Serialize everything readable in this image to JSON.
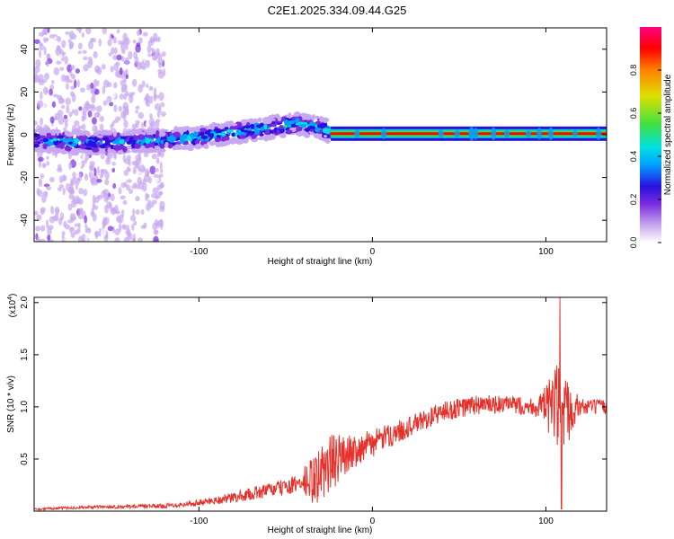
{
  "title": "C2E1.2025.334.09.44.G25",
  "chart_data": [
    {
      "type": "heatmap",
      "name": "spectrogram",
      "xlabel": "Height of straight line (km)",
      "ylabel": "Frequency (Hz)",
      "xlim": [
        -195,
        135
      ],
      "ylim": [
        -50,
        50
      ],
      "xticks": [
        -100,
        0,
        100
      ],
      "yticks": [
        -40,
        -20,
        0,
        20,
        40
      ],
      "colorbar": {
        "label": "Normalized spectral amplitude",
        "range": [
          0,
          1
        ],
        "ticks": [
          0.0,
          0.2,
          0.4,
          0.6,
          0.8
        ],
        "colors": [
          "#ffffff",
          "#c8a8f0",
          "#7a2be0",
          "#2a10e0",
          "#00a0ff",
          "#00e0e0",
          "#40e040",
          "#e0e000",
          "#ff8000",
          "#ff0000",
          "#ff0080"
        ]
      },
      "ridge": [
        {
          "x": -195,
          "freq": -2.5
        },
        {
          "x": -160,
          "freq": -4
        },
        {
          "x": -130,
          "freq": -3
        },
        {
          "x": -100,
          "freq": -1
        },
        {
          "x": -80,
          "freq": 1
        },
        {
          "x": -60,
          "freq": 3
        },
        {
          "x": -45,
          "freq": 5
        },
        {
          "x": -32,
          "freq": 4
        },
        {
          "x": -24,
          "freq": 1
        },
        {
          "x": 135,
          "freq": 0.5
        }
      ],
      "scatter_range": [
        -195,
        -120
      ],
      "tone_range": [
        -24,
        135
      ],
      "tone_freq": 0.5
    },
    {
      "type": "line",
      "name": "snr",
      "xlabel": "Height of straight line (km)",
      "ylabel": "SNR (10 * v/v)",
      "y_multiplier": "(x10",
      "y_multiplier_exp": "4",
      "y_multiplier_close": ")",
      "xlim": [
        -195,
        135
      ],
      "ylim": [
        0,
        2.05
      ],
      "xticks": [
        -100,
        0,
        100
      ],
      "yticks": [
        0.5,
        1.0,
        1.5,
        2.0
      ],
      "ytick_labels": [
        "0.5",
        "1.0",
        "1.5",
        "2.0"
      ],
      "color": "#e8302a",
      "series_envelope": [
        {
          "x": -195,
          "mean": 0.02,
          "noise": 0.01
        },
        {
          "x": -160,
          "mean": 0.04,
          "noise": 0.015
        },
        {
          "x": -120,
          "mean": 0.05,
          "noise": 0.02
        },
        {
          "x": -100,
          "mean": 0.08,
          "noise": 0.03
        },
        {
          "x": -80,
          "mean": 0.13,
          "noise": 0.05
        },
        {
          "x": -60,
          "mean": 0.2,
          "noise": 0.07
        },
        {
          "x": -45,
          "mean": 0.25,
          "noise": 0.08
        },
        {
          "x": -33,
          "mean": 0.3,
          "noise": 0.25
        },
        {
          "x": -25,
          "mean": 0.45,
          "noise": 0.3
        },
        {
          "x": -15,
          "mean": 0.55,
          "noise": 0.18
        },
        {
          "x": 0,
          "mean": 0.65,
          "noise": 0.13
        },
        {
          "x": 20,
          "mean": 0.8,
          "noise": 0.1
        },
        {
          "x": 40,
          "mean": 0.95,
          "noise": 0.1
        },
        {
          "x": 60,
          "mean": 1.02,
          "noise": 0.1
        },
        {
          "x": 80,
          "mean": 1.02,
          "noise": 0.08
        },
        {
          "x": 95,
          "mean": 1.0,
          "noise": 0.1
        },
        {
          "x": 100,
          "mean": 1.0,
          "noise": 0.2
        },
        {
          "x": 106,
          "mean": 1.0,
          "noise": 0.45
        },
        {
          "x": 110,
          "mean": 0.7,
          "noise": 0.6
        },
        {
          "x": 114,
          "mean": 1.0,
          "noise": 0.25
        },
        {
          "x": 120,
          "mean": 1.0,
          "noise": 0.08
        },
        {
          "x": 135,
          "mean": 1.0,
          "noise": 0.07
        }
      ],
      "peak": {
        "x": 108,
        "value": 2.05
      },
      "trough": {
        "x": 109,
        "value": 0.02
      }
    }
  ]
}
